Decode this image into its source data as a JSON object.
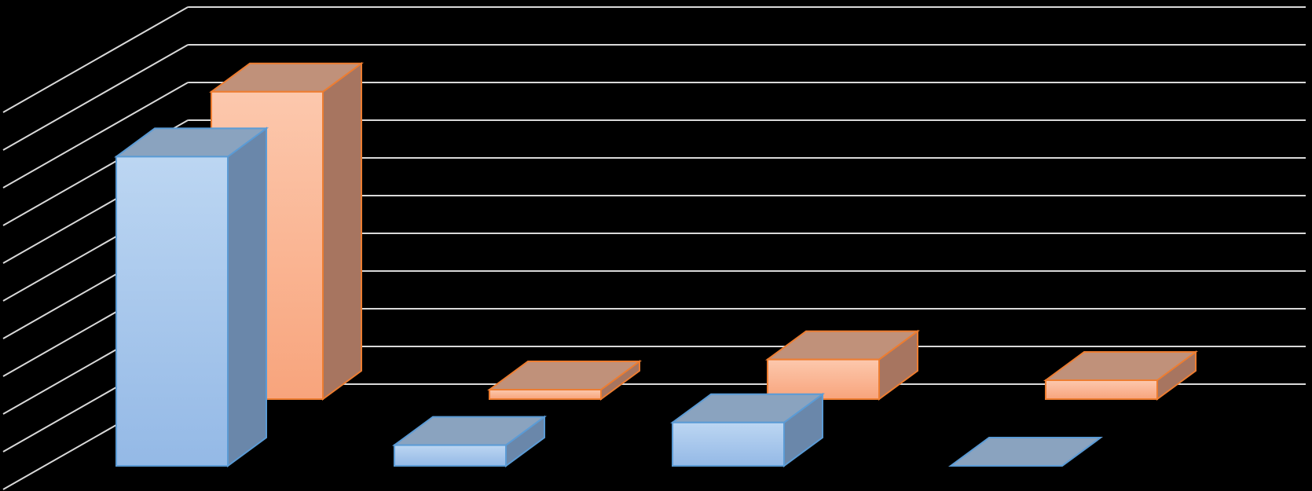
{
  "chart_data": {
    "type": "bar",
    "variant": "3d-clustered-column",
    "title": "",
    "xlabel": "",
    "ylabel": "",
    "categories": [
      "",
      "",
      "",
      ""
    ],
    "series": [
      {
        "values": [
          8.2,
          0.55,
          1.15,
          0.0
        ],
        "color": "#9dc3e6"
      },
      {
        "values": [
          8.15,
          0.25,
          1.05,
          0.5
        ],
        "color": "#f8a67c"
      }
    ],
    "ylim": [
      0,
      10
    ],
    "grid": true,
    "legend": "none",
    "background": "#000000",
    "gridline_color": "#d9d9d9"
  }
}
